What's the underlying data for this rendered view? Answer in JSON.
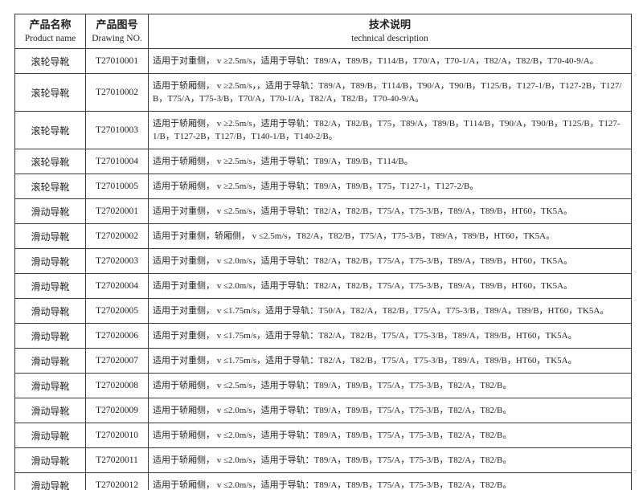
{
  "colors": {
    "border": "#3a3a3a",
    "text": "#1f1f1f",
    "background": "#ffffff"
  },
  "header": {
    "col1_zh": "产品名称",
    "col1_en": "Product name",
    "col2_zh": "产品图号",
    "col2_en": "Drawing NO.",
    "col3_zh": "技术说明",
    "col3_en": "technical description"
  },
  "rows": [
    {
      "name": "滚轮导靴",
      "no": "T27010001",
      "desc": "适用于对重侧， v ≥2.5m/s，适用于导轨：T89/A，T89/B，T114/B，T70/A，T70-1/A，T82/A，T82/B，T70-40-9/A。"
    },
    {
      "name": "滚轮导靴",
      "no": "T27010002",
      "desc": "适用于轿厢侧， v ≥2.5m/s，，适用于导轨：T89/A，T89/B，T114/B，T90/A，T90/B，T125/B，T127-1/B，T127-2B，T127/B，T75/A，T75-3/B，T70/A，T70-1/A，T82/A，T82/B，T70-40-9/A。"
    },
    {
      "name": "滚轮导靴",
      "no": "T27010003",
      "desc": "适用于轿厢侧， v ≥2.5m/s，适用于导轨：T82/A，T82/B，T75，T89/A，T89/B，T114/B，T90/A，T90/B，T125/B，T127-1/B，T127-2B，T127/B，T140-1/B，T140-2/B。"
    },
    {
      "name": "滚轮导靴",
      "no": "T27010004",
      "desc": "适用于轿厢侧， v ≥2.5m/s，适用于导轨：T89/A，T89/B，T114/B。"
    },
    {
      "name": "滚轮导靴",
      "no": "T27010005",
      "desc": "适用于轿厢侧， v ≥2.5m/s，适用于导轨：T89/A，T89/B，T75，T127-1，T127-2/B。"
    },
    {
      "name": "滑动导靴",
      "no": "T27020001",
      "desc": "适用于对重侧， v ≤2.5m/s，适用于导轨：T82/A，T82/B，T75/A，T75-3/B，T89/A，T89/B，HT60，TK5A。"
    },
    {
      "name": "滑动导靴",
      "no": "T27020002",
      "desc": "适用于对重侧，轿厢侧， v ≤2.5m/s，T82/A，T82/B，T75/A，T75-3/B，T89/A，T89/B，HT60，TK5A。"
    },
    {
      "name": "滑动导靴",
      "no": "T27020003",
      "desc": "适用于对重侧， v ≤2.0m/s，适用于导轨：T82/A，T82/B，T75/A，T75-3/B，T89/A，T89/B，HT60，TK5A。"
    },
    {
      "name": "滑动导靴",
      "no": "T27020004",
      "desc": "适用于对重侧， v ≤2.0m/s，适用于导轨：T82/A，T82/B，T75/A，T75-3/B，T89/A，T89/B，HT60，TK5A。"
    },
    {
      "name": "滑动导靴",
      "no": "T27020005",
      "desc": "适用于对重侧， v ≤1.75m/s，适用于导轨：T50/A，T82/A，T82/B，T75/A，T75-3/B，T89/A，T89/B，HT60，TK5A。"
    },
    {
      "name": "滑动导靴",
      "no": "T27020006",
      "desc": "适用于对重侧， v ≤1.75m/s，适用于导轨：T82/A，T82/B，T75/A，T75-3/B，T89/A，T89/B，HT60，TK5A。"
    },
    {
      "name": "滑动导靴",
      "no": "T27020007",
      "desc": "适用于对重侧， v ≤1.75m/s，适用于导轨：T82/A，T82/B，T75/A，T75-3/B，T89/A，T89/B，HT60，TK5A。"
    },
    {
      "name": "滑动导靴",
      "no": "T27020008",
      "desc": "适用于轿厢侧， v ≤2.5m/s，适用于导轨：T89/A，T89/B，T75/A，T75-3/B，T82/A，T82/B。"
    },
    {
      "name": "滑动导靴",
      "no": "T27020009",
      "desc": "适用于轿厢侧， v ≤2.0m/s，适用于导轨：T89/A，T89/B，T75/A，T75-3/B，T82/A，T82/B。"
    },
    {
      "name": "滑动导靴",
      "no": "T27020010",
      "desc": "适用于轿厢侧， v ≤2.0m/s，适用于导轨：T89/A，T89/B，T75/A，T75-3/B，T82/A，T82/B。"
    },
    {
      "name": "滑动导靴",
      "no": "T27020011",
      "desc": "适用于轿厢侧， v ≤2.0m/s，适用于导轨：T89/A，T89/B，T75/A，T75-3/B，T82/A，T82/B。"
    },
    {
      "name": "滑动导靴",
      "no": "T27020012",
      "desc": "适用于轿厢侧， v ≤2.0m/s，适用于导轨：T89/A，T89/B，T75/A，T75-3/B，T82/A，T82/B。"
    }
  ]
}
